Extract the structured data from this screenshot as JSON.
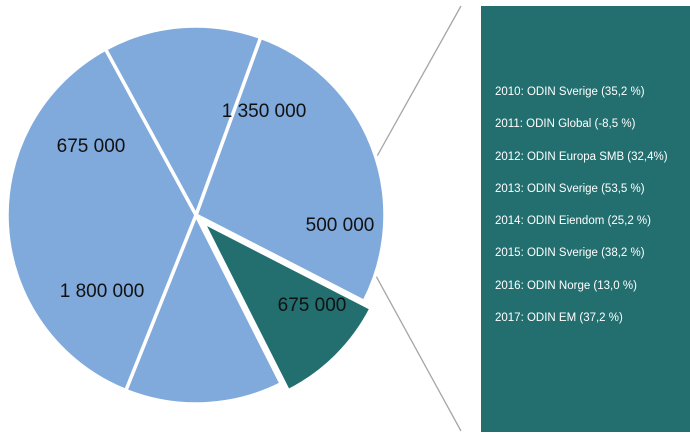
{
  "chart_data": {
    "type": "pie",
    "slices": [
      {
        "label": "1 350 000",
        "value": 1350000,
        "color": "#80a9dc"
      },
      {
        "label": "500 000",
        "value": 500000,
        "color": "#236f70"
      },
      {
        "label": "675 000",
        "value": 675000,
        "color": "#80a9dc"
      },
      {
        "label": "1 800 000",
        "value": 1800000,
        "color": "#80a9dc"
      },
      {
        "label": "675 000",
        "value": 675000,
        "color": "#80a9dc"
      }
    ],
    "exploded_slice": "500 000"
  },
  "panel": {
    "background": "#236f70",
    "items": [
      "2010: ODIN Sverige (35,2 %)",
      "2011: ODIN Global (-8,5 %)",
      "2012: ODIN Europa SMB (32,4%)",
      "2013: ODIN Sverige (53,5 %)",
      "2014: ODIN Eiendom (25,2 %)",
      "2015: ODIN Sverige (38,2 %)",
      "2016: ODIN Norge (13,0 %)",
      "2017: ODIN EM (37,2 %)"
    ]
  }
}
